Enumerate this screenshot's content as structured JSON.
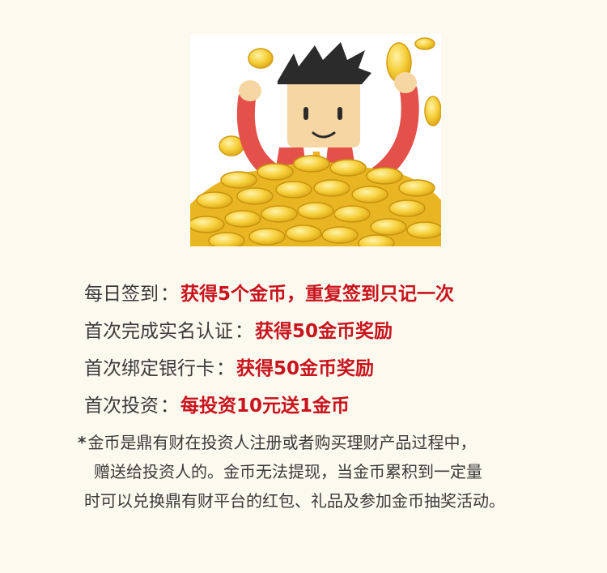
{
  "rules": [
    {
      "label": "每日签到",
      "colon": "：",
      "value": "获得5个金币，重复签到只记一次"
    },
    {
      "label": "首次完成实名认证",
      "colon": "：",
      "value": "获得50金币奖励"
    },
    {
      "label": "首次绑定银行卡",
      "colon": "：",
      "value": "获得50金币奖励"
    },
    {
      "label": "首次投资",
      "colon": "：",
      "value": "每投资10元送1金币"
    }
  ],
  "note": {
    "star": "*",
    "line1": "金币是鼎有财在投资人注册或者购买理财产品过程中，",
    "line2": "赠送给投资人的。金币无法提现，当金币累积到一定量",
    "line3": "时可以兑换鼎有财平台的红包、礼品及参加金币抽奖活动。"
  },
  "colors": {
    "background": "#fcf9ee",
    "accent_red": "#c8141e",
    "text": "#3a3a3a",
    "coin": "#f3c72e"
  },
  "illustration": {
    "icon": "man-with-gold-coins-icon"
  }
}
